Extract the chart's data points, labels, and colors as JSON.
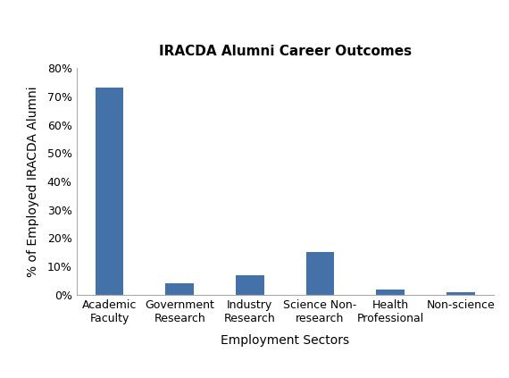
{
  "title": "IRACDA Alumni Career Outcomes",
  "xlabel": "Employment Sectors",
  "ylabel": "% of Employed IRACDA Alumni",
  "categories": [
    "Academic\nFaculty",
    "Government\nResearch",
    "Industry\nResearch",
    "Science Non-\nresearch",
    "Health\nProfessional",
    "Non-science"
  ],
  "values": [
    73,
    4,
    7,
    15,
    2,
    1
  ],
  "bar_color": "#4472a8",
  "ylim": [
    0,
    80
  ],
  "yticks": [
    0,
    10,
    20,
    30,
    40,
    50,
    60,
    70,
    80
  ],
  "title_fontsize": 11,
  "label_fontsize": 10,
  "tick_fontsize": 9,
  "background_color": "#ffffff",
  "bar_width": 0.4,
  "spine_color": "#aaaaaa"
}
